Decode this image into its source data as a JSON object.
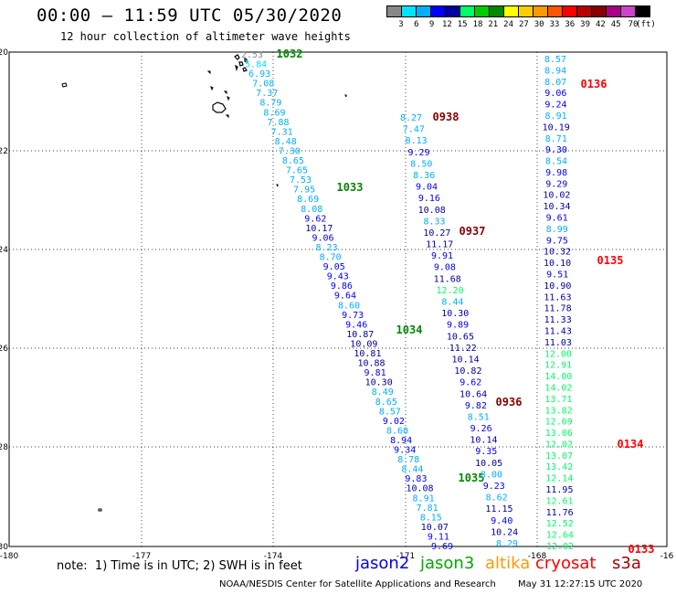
{
  "title": "00:00 – 11:59 UTC 05/30/2020",
  "subtitle": "12 hour collection of altimeter wave heights",
  "colorbar": {
    "unit": "(ft)",
    "swatches": [
      "#888888",
      "#00e5ff",
      "#00b0ff",
      "#0000ff",
      "#0000a0",
      "#00ff66",
      "#00cc00",
      "#008800",
      "#ffff00",
      "#ffcc00",
      "#ff9900",
      "#ff5500",
      "#ff0000",
      "#bb0000",
      "#880000",
      "#aa0088",
      "#cc44cc",
      "#000000"
    ],
    "labels": [
      "3",
      "6",
      "9",
      "12",
      "15",
      "18",
      "21",
      "24",
      "27",
      "30",
      "33",
      "36",
      "39",
      "42",
      "45",
      "70"
    ]
  },
  "axes": {
    "lon_labels": [
      "-180",
      "-177",
      "-174",
      "-171",
      "-168",
      "-16"
    ],
    "lat_labels": [
      "-20",
      "-22",
      "-24",
      "-26",
      "-28",
      "-30"
    ]
  },
  "note": "note:  1) Time is in UTC; 2) SWH is in feet",
  "legend": [
    {
      "name": "jason2",
      "color": "#0000ff"
    },
    {
      "name": "jason3",
      "color": "#00aa00"
    },
    {
      "name": "altika",
      "color": "#ff9900"
    },
    {
      "name": "cryosat",
      "color": "#ff0000"
    },
    {
      "name": "s3a",
      "color": "#aa0000"
    }
  ],
  "credit": "NOAA/NESDIS Center for Satellite Applications and Research",
  "stamp": "May 31 12:27:15 UTC 2020",
  "tracks": [
    {
      "name": "track-1032-1035",
      "times": [
        {
          "label": "1032",
          "color": "#008800"
        },
        {
          "label": "1033",
          "color": "#008800"
        },
        {
          "label": "1034",
          "color": "#008800"
        },
        {
          "label": "1035",
          "color": "#008800"
        }
      ],
      "values": [
        "2.53",
        "5.84",
        "6.93",
        "7.08",
        "7.37",
        "8.79",
        "8.69",
        "7.88",
        "7.31",
        "8.48",
        "7.30",
        "8.65",
        "7.65",
        "7.53",
        "7.95",
        "8.69",
        "8.08",
        "9.62",
        "10.17",
        "9.06",
        "8.23",
        "8.70",
        "9.05",
        "9.43",
        "9.86",
        "9.64",
        "8.60",
        "9.73",
        "9.46",
        "10.87",
        "10.09",
        "10.81",
        "10.88",
        "9.81",
        "10.30",
        "8.49",
        "8.65",
        "8.57",
        "9.02",
        "8.60",
        "8.94",
        "9.34",
        "8.78",
        "8.44",
        "9.83",
        "10.08",
        "8.91",
        "7.81",
        "8.15",
        "10.07",
        "9.11",
        "9.69"
      ],
      "colors": [
        "#888888",
        "#00e5ff",
        "#00b0ff",
        "#00b0ff",
        "#00b0ff",
        "#00b0ff",
        "#00b0ff",
        "#00b0ff",
        "#00b0ff",
        "#00b0ff",
        "#00b0ff",
        "#00b0ff",
        "#00b0ff",
        "#00b0ff",
        "#00b0ff",
        "#00b0ff",
        "#00b0ff",
        "#0000ff",
        "#0000a0",
        "#0000ff",
        "#00b0ff",
        "#00b0ff",
        "#0000ff",
        "#0000ff",
        "#0000ff",
        "#0000ff",
        "#00b0ff",
        "#0000ff",
        "#0000ff",
        "#0000a0",
        "#0000a0",
        "#0000a0",
        "#0000a0",
        "#0000ff",
        "#0000a0",
        "#00b0ff",
        "#00b0ff",
        "#00b0ff",
        "#0000ff",
        "#00b0ff",
        "#0000ff",
        "#0000ff",
        "#00b0ff",
        "#00b0ff",
        "#0000ff",
        "#0000a0",
        "#00b0ff",
        "#00b0ff",
        "#00b0ff",
        "#0000a0",
        "#0000ff",
        "#0000ff"
      ]
    },
    {
      "name": "track-0938-0936",
      "times": [
        {
          "label": "0938",
          "color": "#880000"
        },
        {
          "label": "0937",
          "color": "#880000"
        },
        {
          "label": "0936",
          "color": "#880000"
        }
      ],
      "values": [
        "8.27",
        "7.47",
        "8.13",
        "9.29",
        "8.50",
        "8.36",
        "9.04",
        "9.16",
        "10.08",
        "8.33",
        "10.27",
        "11.17",
        "9.91",
        "9.08",
        "11.68",
        "12.20",
        "8.44",
        "10.30",
        "9.89",
        "10.65",
        "11.22",
        "10.14",
        "10.82",
        "9.62",
        "10.64",
        "9.82",
        "8.51",
        "9.26",
        "10.14",
        "9.35",
        "10.05",
        "8.00",
        "9.23",
        "8.62",
        "11.15",
        "9.40",
        "10.24",
        "8.29"
      ],
      "colors": [
        "#00b0ff",
        "#00b0ff",
        "#00b0ff",
        "#0000ff",
        "#00b0ff",
        "#00b0ff",
        "#0000ff",
        "#0000ff",
        "#0000a0",
        "#00b0ff",
        "#0000a0",
        "#0000a0",
        "#0000ff",
        "#0000ff",
        "#0000a0",
        "#00ff66",
        "#00b0ff",
        "#0000a0",
        "#0000ff",
        "#0000a0",
        "#0000a0",
        "#0000a0",
        "#0000a0",
        "#0000ff",
        "#0000a0",
        "#0000ff",
        "#00b0ff",
        "#0000ff",
        "#0000a0",
        "#0000ff",
        "#0000a0",
        "#00b0ff",
        "#0000ff",
        "#00b0ff",
        "#0000a0",
        "#0000ff",
        "#0000a0",
        "#00b0ff"
      ]
    },
    {
      "name": "track-0136-0133",
      "times": [
        {
          "label": "0136",
          "color": "#ff0000"
        },
        {
          "label": "0135",
          "color": "#ff0000"
        },
        {
          "label": "0134",
          "color": "#ff0000"
        },
        {
          "label": "0133",
          "color": "#ff0000"
        }
      ],
      "values": [
        "8.57",
        "8.94",
        "8.07",
        "9.06",
        "9.24",
        "8.91",
        "10.19",
        "8.71",
        "9.30",
        "8.54",
        "9.98",
        "9.29",
        "10.02",
        "10.34",
        "9.61",
        "8.99",
        "9.75",
        "10.32",
        "10.10",
        "9.51",
        "10.90",
        "11.63",
        "11.78",
        "11.33",
        "11.43",
        "11.03",
        "12.00",
        "12.91",
        "14.00",
        "14.02",
        "13.71",
        "13.82",
        "12.69",
        "13.06",
        "12.02",
        "13.07",
        "13.42",
        "12.14",
        "11.95",
        "12.61",
        "11.76",
        "12.52",
        "12.64",
        "12.02"
      ],
      "colors": [
        "#00b0ff",
        "#00b0ff",
        "#00b0ff",
        "#0000ff",
        "#0000ff",
        "#00b0ff",
        "#0000a0",
        "#00b0ff",
        "#0000ff",
        "#00b0ff",
        "#0000ff",
        "#0000ff",
        "#0000a0",
        "#0000a0",
        "#0000ff",
        "#00b0ff",
        "#0000ff",
        "#0000a0",
        "#0000a0",
        "#0000ff",
        "#0000a0",
        "#0000a0",
        "#0000a0",
        "#0000a0",
        "#0000a0",
        "#0000a0",
        "#00ff66",
        "#00ff66",
        "#00ff66",
        "#00ff66",
        "#00ff66",
        "#00ff66",
        "#00ff66",
        "#00ff66",
        "#00ff66",
        "#00ff66",
        "#00ff66",
        "#00ff66",
        "#0000a0",
        "#00ff66",
        "#0000a0",
        "#00ff66",
        "#00ff66",
        "#00ff66"
      ]
    }
  ]
}
